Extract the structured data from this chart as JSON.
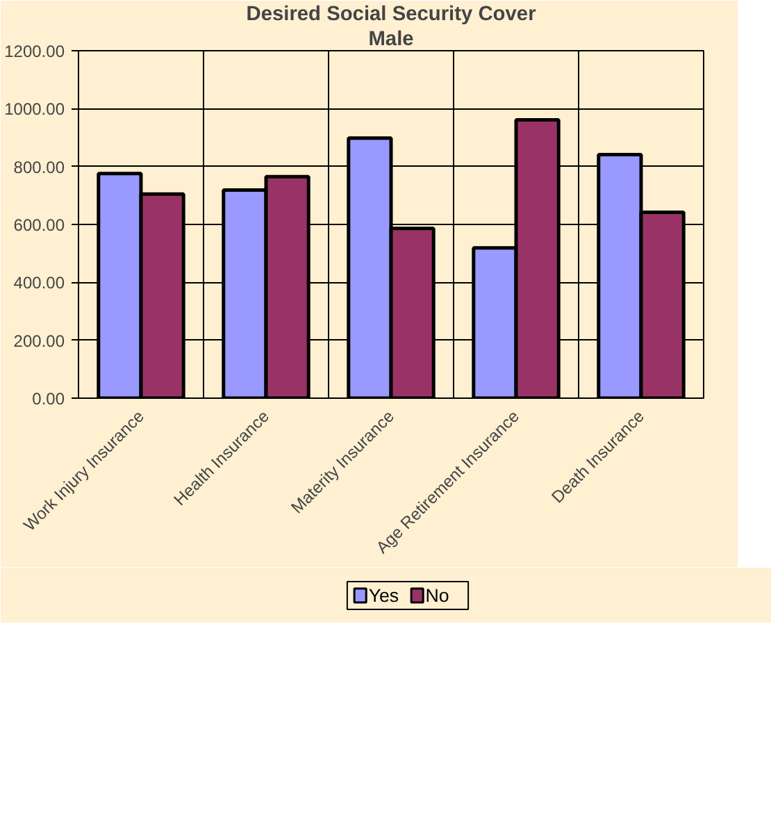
{
  "chart_data": {
    "type": "bar",
    "title": "Desired Social Security Cover",
    "subtitle": "Male",
    "categories": [
      "Work Injury Insurance",
      "Health Insurance",
      "Materity Insurance",
      "Age Retirement Insurance",
      "Death Insurance"
    ],
    "series": [
      {
        "name": "Yes",
        "color": "#9999ff",
        "values": [
          776,
          719,
          898,
          519,
          841
        ]
      },
      {
        "name": "No",
        "color": "#993366",
        "values": [
          705,
          765,
          586,
          961,
          642
        ]
      }
    ],
    "ylim": [
      0,
      1200
    ],
    "yticks": [
      {
        "value": 0,
        "label": "0.00"
      },
      {
        "value": 200,
        "label": "200.00"
      },
      {
        "value": 400,
        "label": "400.00"
      },
      {
        "value": 600,
        "label": "600.00"
      },
      {
        "value": 800,
        "label": "800.00"
      },
      {
        "value": 1000,
        "label": "1000.00"
      },
      {
        "value": 1200,
        "label": "1200.00"
      }
    ],
    "grid": true,
    "legend": "bottom"
  }
}
